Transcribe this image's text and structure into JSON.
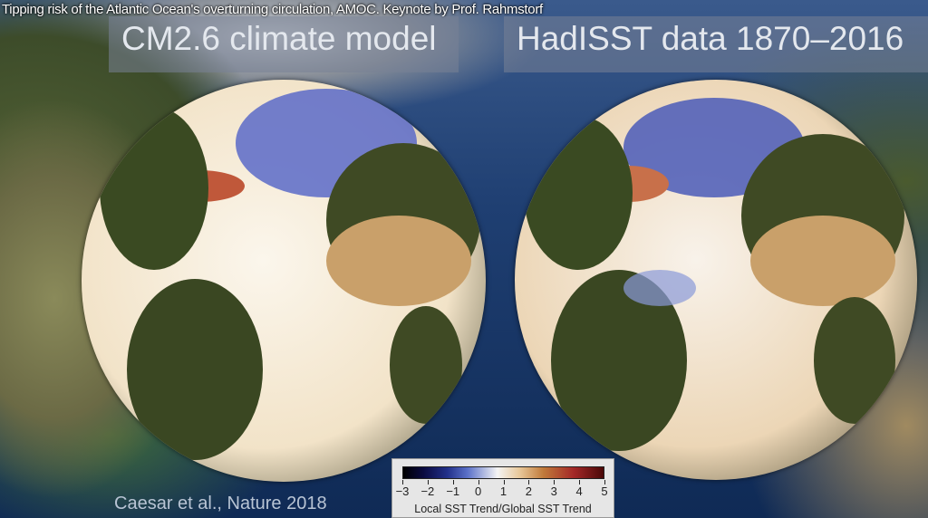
{
  "video_title": "Tipping risk of the Atlantic Ocean's overturning circulation, AMOC. Keynote by Prof. Rahmstorf",
  "panels": [
    {
      "title": "CM2.6 climate model"
    },
    {
      "title": "HadISST data 1870–2016"
    }
  ],
  "citation": "Caesar et al., Nature 2018",
  "colorbar": {
    "ticks": [
      "−3",
      "−2",
      "−1",
      "0",
      "1",
      "2",
      "3",
      "4",
      "5"
    ],
    "label": "Local SST Trend/Global SST Trend",
    "range": [
      -3,
      5
    ],
    "colors": [
      "#000000",
      "#22308a",
      "#f4f4f4",
      "#c07a3a",
      "#4a0808"
    ]
  }
}
